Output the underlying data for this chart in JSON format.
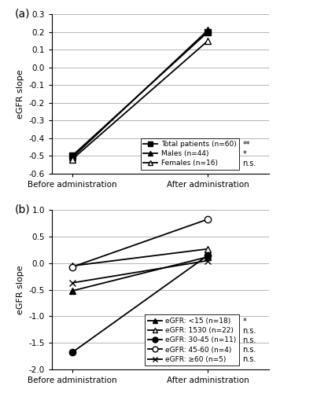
{
  "panel_a": {
    "ylabel": "eGFR slope",
    "ylim": [
      -0.6,
      0.3
    ],
    "yticks": [
      -0.6,
      -0.5,
      -0.4,
      -0.3,
      -0.2,
      -0.1,
      0.0,
      0.1,
      0.2,
      0.3
    ],
    "ytick_labels": [
      "-0.6",
      "-0.5",
      "-0.4",
      "-0.3",
      "-0.2",
      "-0.1",
      "0.0",
      "0.1",
      "0.2",
      "0.3"
    ],
    "series": [
      {
        "label": "Total patients (n=60)",
        "x": [
          0,
          1
        ],
        "y": [
          -0.5,
          0.2
        ],
        "marker": "s",
        "marker_filled": true,
        "linestyle": "-",
        "sig": "**"
      },
      {
        "label": "Males (n=44)",
        "x": [
          0,
          1
        ],
        "y": [
          -0.51,
          0.21
        ],
        "marker": "^",
        "marker_filled": true,
        "linestyle": "-",
        "sig": "*"
      },
      {
        "label": "Females (n=16)",
        "x": [
          0,
          1
        ],
        "y": [
          -0.52,
          0.15
        ],
        "marker": "^",
        "marker_filled": false,
        "linestyle": "-",
        "sig": "n.s."
      }
    ],
    "xtick_labels": [
      "Before administration",
      "After administration"
    ]
  },
  "panel_b": {
    "ylabel": "eGFR slope",
    "ylim": [
      -2.0,
      1.0
    ],
    "yticks": [
      -2.0,
      -1.5,
      -1.0,
      -0.5,
      0.0,
      0.5,
      1.0
    ],
    "ytick_labels": [
      "-2.0",
      "-1.5",
      "-1.0",
      "-0.5",
      "0.0",
      "0.5",
      "1.0"
    ],
    "series": [
      {
        "label": "eGFR: <15 (n=18)",
        "x": [
          0,
          1
        ],
        "y": [
          -0.52,
          0.12
        ],
        "marker": "^",
        "marker_filled": true,
        "linestyle": "-",
        "sig": "*"
      },
      {
        "label": "eGFR: 1530 (n=22)",
        "x": [
          0,
          1
        ],
        "y": [
          -0.05,
          0.27
        ],
        "marker": "^",
        "marker_filled": false,
        "linestyle": "-",
        "sig": "n.s."
      },
      {
        "label": "eGFR: 30-45 (n=11)",
        "x": [
          0,
          1
        ],
        "y": [
          -1.68,
          0.15
        ],
        "marker": "o",
        "marker_filled": true,
        "linestyle": "-",
        "sig": "n.s."
      },
      {
        "label": "eGFR: 45-60 (n=4)",
        "x": [
          0,
          1
        ],
        "y": [
          -0.07,
          0.83
        ],
        "marker": "o",
        "marker_filled": false,
        "linestyle": "-",
        "sig": "n.s."
      },
      {
        "label": "eGFR: ≥60 (n=5)",
        "x": [
          0,
          1
        ],
        "y": [
          -0.37,
          0.05
        ],
        "marker": "x",
        "marker_filled": false,
        "linestyle": "-",
        "sig": "n.s."
      }
    ],
    "xtick_labels": [
      "Before administration",
      "After administration"
    ]
  }
}
